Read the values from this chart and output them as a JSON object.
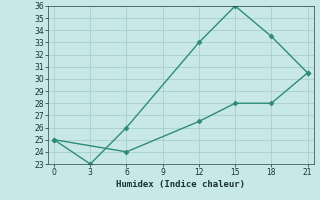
{
  "upper_x": [
    0,
    3,
    6,
    12,
    15,
    18,
    21
  ],
  "upper_y": [
    25,
    23,
    26,
    33,
    36,
    33.5,
    30.5
  ],
  "lower_x": [
    0,
    6,
    12,
    15,
    18,
    21
  ],
  "lower_y": [
    25,
    24,
    26.5,
    28,
    28,
    30.5
  ],
  "color": "#2e8b7a",
  "bg_color": "#c8e8e8",
  "grid_color": "#a8cece",
  "xlabel": "Humidex (Indice chaleur)",
  "xlim": [
    -0.5,
    21.5
  ],
  "ylim": [
    23,
    36
  ],
  "xticks": [
    0,
    3,
    6,
    9,
    12,
    15,
    18,
    21
  ],
  "yticks": [
    23,
    24,
    25,
    26,
    27,
    28,
    29,
    30,
    31,
    32,
    33,
    34,
    35,
    36
  ],
  "marker": "D",
  "marker_size": 2.5,
  "line_width": 1.0,
  "tick_fontsize": 5.5,
  "xlabel_fontsize": 6.5
}
